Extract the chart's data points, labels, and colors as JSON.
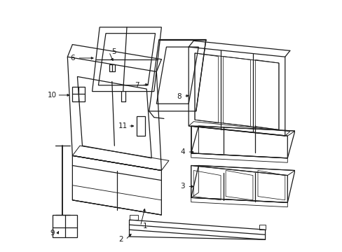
{
  "bg_color": "#ffffff",
  "line_color": "#1a1a1a",
  "lw": 0.9,
  "fig_width": 4.89,
  "fig_height": 3.6,
  "dpi": 100
}
